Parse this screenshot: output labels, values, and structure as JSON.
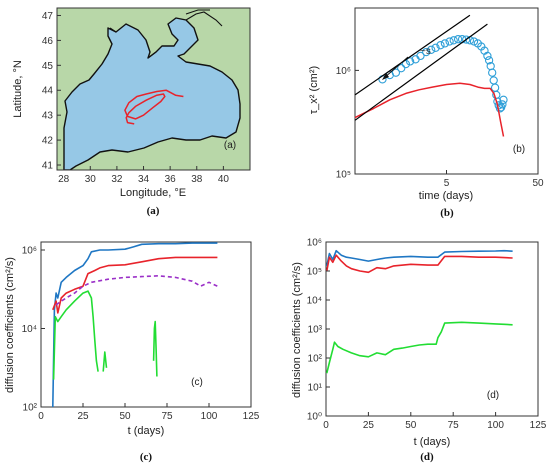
{
  "colors": {
    "blue": "#1f77c4",
    "red": "#e8232b",
    "green": "#22dd33",
    "purple": "#9b30c8",
    "sea": "#96c8e6",
    "land": "#b8d7a8",
    "track": "#e8232b",
    "circle": "#2e9fd8"
  },
  "captions": {
    "a": "(a)",
    "b": "(b)",
    "c": "(c)",
    "d": "(d)"
  },
  "chart_data": [
    {
      "id": "a",
      "type": "map",
      "panel_label": "(a)",
      "xlabel": "Longitude, °E",
      "ylabel": "Latitude, °N",
      "xlim": [
        27.5,
        42
      ],
      "ylim": [
        40.8,
        47.3
      ],
      "xticks": [
        28,
        30,
        32,
        34,
        36,
        38,
        40
      ],
      "yticks": [
        41,
        42,
        43,
        44,
        45,
        46,
        47
      ],
      "trajectories": [
        {
          "name": "",
          "lon": [
            37.0,
            36.4,
            35.7,
            35.0,
            34.2,
            33.5,
            32.9,
            32.6,
            32.8,
            33.4,
            34.0,
            34.7,
            35.3,
            35.6,
            35.5,
            35.0,
            34.2,
            33.4,
            32.9,
            32.7,
            32.8,
            33.3
          ],
          "lat": [
            43.75,
            43.8,
            44.0,
            43.95,
            43.85,
            43.75,
            43.5,
            43.2,
            42.95,
            42.85,
            43.0,
            43.3,
            43.55,
            43.75,
            43.85,
            43.8,
            43.6,
            43.35,
            43.1,
            42.9,
            42.7,
            42.65
          ]
        }
      ]
    },
    {
      "id": "b",
      "type": "line",
      "panel_label": "(b)",
      "scale": "log-log",
      "xlabel": "time (days)",
      "ylabel": "τ_x² (cm²)",
      "xlim": [
        0.5,
        50
      ],
      "ylim": [
        100000,
        4000000
      ],
      "xticks": [
        {
          "v": 5,
          "label": "5"
        },
        {
          "v": 50,
          "label": "50"
        }
      ],
      "yticks": [
        {
          "v": 100000,
          "label": "10⁵"
        },
        {
          "v": 1000000,
          "label": "10⁶"
        }
      ],
      "annotation": "~s",
      "series": [
        {
          "name": "",
          "style": "circles",
          "color": "circle",
          "x": [
            1.0,
            1.2,
            1.4,
            1.6,
            1.8,
            2.0,
            2.3,
            2.6,
            3.0,
            3.4,
            3.8,
            4.3,
            4.8,
            5.4,
            6.0,
            6.7,
            7.4,
            8.2,
            9.0,
            10.0,
            11.0,
            12.0,
            13.0,
            14.0,
            14.6,
            15.2,
            15.8,
            16.4,
            17.0,
            17.5,
            18.0,
            18.6,
            19.2,
            19.8,
            20.4,
            21.0
          ],
          "y": [
            820000,
            900000,
            950000,
            1050000,
            1150000,
            1220000,
            1280000,
            1380000,
            1500000,
            1580000,
            1650000,
            1750000,
            1820000,
            1900000,
            1950000,
            2000000,
            2000000,
            1980000,
            1950000,
            1900000,
            1820000,
            1700000,
            1550000,
            1380000,
            1250000,
            1100000,
            950000,
            800000,
            680000,
            580000,
            500000,
            460000,
            430000,
            440000,
            470000,
            520000
          ]
        },
        {
          "name": "",
          "style": "line",
          "color": "red",
          "x": [
            0.5,
            0.8,
            1.2,
            1.8,
            2.5,
            3.5,
            5.0,
            7.0,
            9.0,
            11.0,
            13.0,
            15.0,
            16.5,
            18.0,
            19.5,
            21.0
          ],
          "y": [
            350000,
            430000,
            520000,
            600000,
            650000,
            690000,
            730000,
            750000,
            730000,
            690000,
            670000,
            670000,
            600000,
            470000,
            320000,
            230000
          ]
        },
        {
          "name": "",
          "style": "line",
          "color": "black",
          "x": [
            0.5,
            9.0
          ],
          "y": [
            580000,
            3400000
          ]
        },
        {
          "name": "",
          "style": "line",
          "color": "black",
          "x": [
            0.5,
            14.0
          ],
          "y": [
            330000,
            2800000
          ]
        }
      ]
    },
    {
      "id": "c",
      "type": "line",
      "panel_label": "(c)",
      "scale": "semilog-y",
      "xlabel": "t (days)",
      "ylabel": "diffusion coefficients (cm²/s)",
      "xlim": [
        0,
        125
      ],
      "ylim": [
        100,
        1600000
      ],
      "xticks": [
        0,
        25,
        50,
        75,
        100,
        125
      ],
      "yticks": [
        {
          "v": 100,
          "label": "10²"
        },
        {
          "v": 10000,
          "label": "10⁴"
        },
        {
          "v": 1000000,
          "label": "10⁶"
        }
      ],
      "series": [
        {
          "name": "",
          "color": "blue",
          "style": "solid",
          "x": [
            7,
            8,
            9,
            10,
            12,
            15,
            20,
            25,
            28,
            30,
            35,
            40,
            50,
            55,
            60,
            70,
            80,
            90,
            100,
            105
          ],
          "y": [
            100,
            30000,
            80000,
            60000,
            150000,
            200000,
            300000,
            400000,
            600000,
            900000,
            1000000,
            1000000,
            1050000,
            1200000,
            1400000,
            1450000,
            1450000,
            1500000,
            1500000,
            1500000
          ]
        },
        {
          "name": "",
          "color": "red",
          "style": "solid",
          "x": [
            7,
            9,
            10,
            12,
            15,
            20,
            25,
            28,
            32,
            35,
            40,
            50,
            60,
            70,
            80,
            90,
            100,
            105
          ],
          "y": [
            30000,
            50000,
            25000,
            60000,
            80000,
            100000,
            120000,
            250000,
            300000,
            350000,
            400000,
            420000,
            500000,
            600000,
            650000,
            650000,
            650000,
            650000
          ]
        },
        {
          "name": "",
          "color": "purple",
          "style": "dashed",
          "x": [
            9,
            12,
            15,
            20,
            25,
            30,
            40,
            50,
            60,
            70,
            80,
            90,
            95,
            100,
            105
          ],
          "y": [
            40000,
            50000,
            60000,
            80000,
            120000,
            150000,
            180000,
            200000,
            210000,
            220000,
            200000,
            160000,
            120000,
            150000,
            120000
          ]
        },
        {
          "name": "",
          "color": "green",
          "style": "solid",
          "segments": [
            {
              "x": [
                7.5,
                8.5,
                10,
                12,
                15,
                20,
                25,
                28,
                30,
                31,
                32,
                33,
                34
              ],
              "y": [
                500,
                20000,
                15000,
                20000,
                30000,
                50000,
                80000,
                90000,
                60000,
                20000,
                5000,
                1500,
                800
              ]
            },
            {
              "x": [
                37,
                38,
                39
              ],
              "y": [
                800,
                2500,
                1000
              ]
            },
            {
              "x": [
                67,
                67.5,
                68,
                68.5,
                69
              ],
              "y": [
                1500,
                10000,
                15000,
                3000,
                600
              ]
            }
          ]
        }
      ]
    },
    {
      "id": "d",
      "type": "line",
      "panel_label": "(d)",
      "scale": "semilog-y",
      "xlabel": "t (days)",
      "ylabel": "diffusion coefficients (cm²/s)",
      "xlim": [
        0,
        125
      ],
      "ylim": [
        1,
        1000000
      ],
      "xticks": [
        0,
        25,
        50,
        75,
        100,
        125
      ],
      "yticks": [
        {
          "v": 1,
          "label": "10⁰"
        },
        {
          "v": 10,
          "label": "10¹"
        },
        {
          "v": 100,
          "label": "10²"
        },
        {
          "v": 1000,
          "label": "10³"
        },
        {
          "v": 10000,
          "label": "10⁴"
        },
        {
          "v": 100000,
          "label": "10⁵"
        },
        {
          "v": 1000000,
          "label": "10⁶"
        }
      ],
      "series": [
        {
          "name": "",
          "color": "blue",
          "style": "solid",
          "x": [
            0.5,
            2,
            4,
            6,
            9,
            12,
            15,
            20,
            25,
            30,
            35,
            40,
            50,
            60,
            66,
            70,
            80,
            90,
            100,
            105,
            110
          ],
          "y": [
            150000,
            400000,
            250000,
            500000,
            350000,
            300000,
            280000,
            250000,
            220000,
            250000,
            280000,
            300000,
            320000,
            300000,
            300000,
            450000,
            470000,
            480000,
            490000,
            500000,
            480000
          ]
        },
        {
          "name": "",
          "color": "red",
          "style": "solid",
          "x": [
            0.5,
            2,
            4,
            6,
            9,
            12,
            15,
            20,
            25,
            30,
            35,
            40,
            50,
            60,
            66,
            70,
            80,
            90,
            100,
            105,
            110
          ],
          "y": [
            100000,
            300000,
            200000,
            350000,
            220000,
            150000,
            120000,
            100000,
            90000,
            130000,
            120000,
            150000,
            170000,
            160000,
            160000,
            320000,
            320000,
            300000,
            300000,
            290000,
            280000
          ]
        },
        {
          "name": "",
          "color": "green",
          "style": "solid",
          "x": [
            0.5,
            2,
            4,
            5,
            7,
            10,
            15,
            20,
            25,
            30,
            35,
            40,
            45,
            50,
            55,
            60,
            65,
            66,
            68,
            70,
            80,
            90,
            100,
            105,
            110
          ],
          "y": [
            30,
            70,
            200,
            350,
            250,
            200,
            150,
            120,
            110,
            150,
            130,
            200,
            220,
            250,
            280,
            300,
            300,
            500,
            800,
            1600,
            1700,
            1600,
            1500,
            1450,
            1400
          ]
        }
      ]
    }
  ]
}
